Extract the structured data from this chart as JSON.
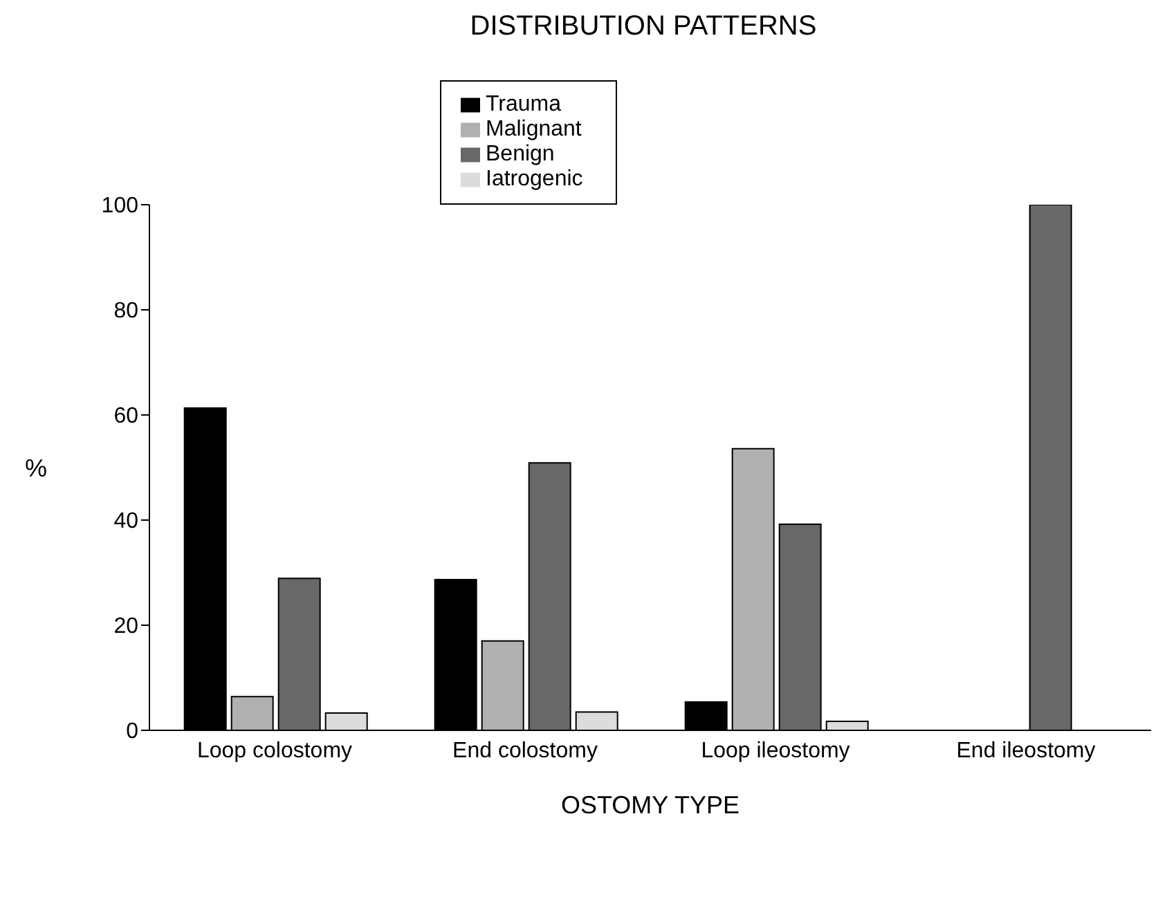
{
  "chart_data": {
    "type": "bar",
    "title": "DISTRIBUTION PATTERNS",
    "xlabel": "OSTOMY TYPE",
    "ylabel": "%",
    "categories": [
      "Loop colostomy",
      "End colostomy",
      "Loop ileostomy",
      "End ileostomy"
    ],
    "series": [
      {
        "name": "Trauma",
        "color": "#000000",
        "values": [
          61.3,
          28.7,
          5.4,
          0
        ]
      },
      {
        "name": "Malignant",
        "color": "#b0b0b0",
        "values": [
          6.4,
          17,
          53.6,
          0
        ]
      },
      {
        "name": "Benign",
        "color": "#686868",
        "values": [
          28.9,
          50.9,
          39.2,
          100
        ]
      },
      {
        "name": "Iatrogenic",
        "color": "#dcdcdc",
        "values": [
          3.3,
          3.5,
          1.7,
          0
        ]
      }
    ],
    "ylim": [
      0,
      100
    ],
    "yticks": [
      0,
      20,
      40,
      60,
      80,
      100
    ],
    "grid": false,
    "legend": "top"
  }
}
